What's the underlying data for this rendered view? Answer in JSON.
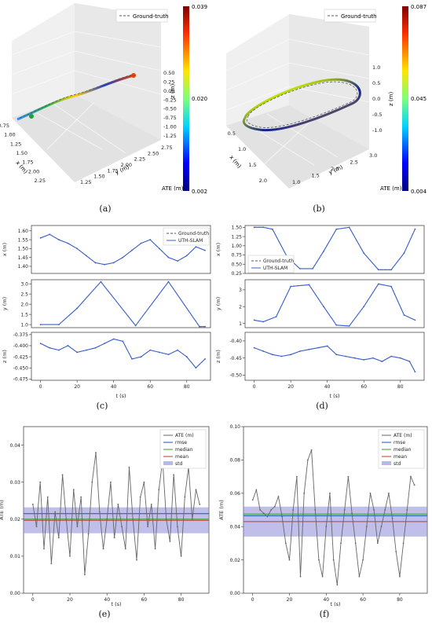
{
  "captions": [
    "(a)",
    "(b)",
    "(c)",
    "(d)",
    "(e)",
    "(f)"
  ],
  "chart_data": [
    {
      "type": "line3d",
      "panel": "a",
      "legend": {
        "entries": [
          "Ground-truth"
        ],
        "placement": "top-right"
      },
      "x": {
        "label": "x (m)",
        "ticks": [
          "0.75",
          "1.00",
          "1.25",
          "1.50",
          "1.75",
          "2.00",
          "2.25"
        ]
      },
      "y": {
        "label": "y (m)",
        "ticks": [
          "1.25",
          "1.50",
          "1.75",
          "2.00",
          "2.25",
          "2.50",
          "2.75"
        ]
      },
      "z": {
        "label": "z (m)",
        "ticks": [
          "0.50",
          "0.25",
          "0.00",
          "-0.25",
          "-0.50",
          "-0.75",
          "-1.00",
          "-1.25"
        ]
      },
      "colorbar": {
        "label": "ATE (m)",
        "min": 0.002,
        "mid": 0.02,
        "max": 0.039,
        "ticks": [
          "0.039",
          "0.020",
          "0.002"
        ]
      },
      "path": {
        "x": [
          1.0,
          1.25,
          1.5,
          1.75,
          2.0,
          2.25
        ],
        "y": [
          1.25,
          1.6,
          2.0,
          2.35,
          2.6,
          2.8
        ],
        "z": [
          0.0,
          0.0,
          0.0,
          0.0,
          0.0,
          0.0
        ]
      }
    },
    {
      "type": "line3d",
      "panel": "b",
      "legend": {
        "entries": [
          "Ground-truth"
        ],
        "placement": "top-right"
      },
      "x": {
        "label": "x (m)",
        "ticks": [
          "0.5",
          "1.0",
          "1.5",
          "2.0"
        ]
      },
      "y": {
        "label": "y (m)",
        "ticks": [
          "1.0",
          "1.5",
          "2.0",
          "2.5",
          "3.0"
        ]
      },
      "z": {
        "label": "z (m)",
        "ticks": [
          "1.0",
          "0.5",
          "0.0",
          "-0.5",
          "-1.0"
        ]
      },
      "colorbar": {
        "label": "ATE (m)",
        "min": 0.004,
        "mid": 0.045,
        "max": 0.087,
        "ticks": [
          "0.087",
          "0.045",
          "0.004"
        ]
      }
    },
    {
      "type": "line",
      "panel": "c",
      "xlabel": "t (s)",
      "xticks": [
        "0",
        "20",
        "40",
        "60",
        "80"
      ],
      "xlim": [
        -5,
        93
      ],
      "legend": {
        "entries": [
          "Ground-truth",
          "UTH-SLAM"
        ],
        "placement": "top-right"
      },
      "subplots": [
        {
          "ylabel": "x (m)",
          "ylim": [
            1.36,
            1.63
          ],
          "yticks": [
            1.4,
            1.45,
            1.5,
            1.55,
            1.6
          ],
          "yticklabels": [
            "1.40",
            "1.45",
            "1.50",
            "1.55",
            "1.60"
          ],
          "t": [
            0,
            5,
            10,
            15,
            20,
            25,
            30,
            35,
            40,
            45,
            50,
            55,
            60,
            65,
            70,
            75,
            80,
            85,
            90
          ],
          "values": [
            1.56,
            1.58,
            1.55,
            1.53,
            1.5,
            1.46,
            1.42,
            1.41,
            1.42,
            1.45,
            1.49,
            1.53,
            1.55,
            1.5,
            1.45,
            1.43,
            1.46,
            1.51,
            1.49
          ]
        },
        {
          "ylabel": "y (m)",
          "ylim": [
            0.85,
            3.2
          ],
          "yticks": [
            1.0,
            1.5,
            2.0,
            2.5,
            3.0
          ],
          "yticklabels": [
            "1.0",
            "1.5",
            "2.0",
            "2.5",
            "3.0"
          ],
          "t": [
            0,
            10,
            20,
            33,
            52,
            70,
            87,
            90
          ],
          "values": [
            1.0,
            1.0,
            1.8,
            3.1,
            0.95,
            3.1,
            0.9,
            0.9
          ]
        },
        {
          "ylabel": "z (m)",
          "ylim": [
            -0.478,
            -0.37
          ],
          "yticks": [
            -0.375,
            -0.4,
            -0.425,
            -0.45,
            -0.475
          ],
          "yticklabels": [
            "-0.375",
            "-0.400",
            "-0.425",
            "-0.450",
            "-0.475"
          ],
          "t": [
            0,
            5,
            10,
            15,
            20,
            25,
            30,
            35,
            40,
            45,
            50,
            55,
            60,
            65,
            70,
            75,
            80,
            85,
            90
          ],
          "values": [
            -0.395,
            -0.405,
            -0.41,
            -0.4,
            -0.415,
            -0.41,
            -0.405,
            -0.395,
            -0.385,
            -0.39,
            -0.43,
            -0.425,
            -0.41,
            -0.415,
            -0.42,
            -0.41,
            -0.425,
            -0.45,
            -0.43
          ]
        }
      ]
    },
    {
      "type": "line",
      "panel": "d",
      "xlabel": "t (s)",
      "xticks": [
        "0",
        "20",
        "40",
        "60",
        "80"
      ],
      "xlim": [
        -5,
        93
      ],
      "legend": {
        "entries": [
          "Ground-truth",
          "UTH-SLAM"
        ],
        "placement": "lower-left (top subplot)"
      },
      "subplots": [
        {
          "ylabel": "x (m)",
          "ylim": [
            0.25,
            1.55
          ],
          "yticks": [
            0.25,
            0.5,
            0.75,
            1.0,
            1.25,
            1.5
          ],
          "yticklabels": [
            "0.25",
            "0.50",
            "0.75",
            "1.00",
            "1.25",
            "1.50"
          ],
          "t": [
            0,
            5,
            10,
            18,
            25,
            32,
            38,
            45,
            52,
            60,
            68,
            75,
            82,
            88
          ],
          "values": [
            1.5,
            1.5,
            1.45,
            0.7,
            0.38,
            0.38,
            0.85,
            1.45,
            1.5,
            0.8,
            0.35,
            0.35,
            0.8,
            1.45
          ]
        },
        {
          "ylabel": "y (m)",
          "ylim": [
            0.75,
            3.6
          ],
          "yticks": [
            1,
            2,
            3
          ],
          "yticklabels": [
            "1",
            "2",
            "3"
          ],
          "t": [
            0,
            5,
            12,
            20,
            30,
            38,
            45,
            52,
            60,
            68,
            75,
            82,
            88
          ],
          "values": [
            1.2,
            1.1,
            1.4,
            3.2,
            3.3,
            2.0,
            0.9,
            0.85,
            2.0,
            3.35,
            3.2,
            1.5,
            1.2
          ]
        },
        {
          "ylabel": "z (m)",
          "ylim": [
            -0.515,
            -0.375
          ],
          "yticks": [
            -0.4,
            -0.45,
            -0.5
          ],
          "yticklabels": [
            "-0.40",
            "-0.45",
            "-0.50"
          ],
          "t": [
            0,
            5,
            10,
            15,
            20,
            25,
            30,
            35,
            40,
            45,
            50,
            55,
            60,
            65,
            70,
            75,
            80,
            85,
            88
          ],
          "values": [
            -0.42,
            -0.43,
            -0.44,
            -0.445,
            -0.44,
            -0.43,
            -0.425,
            -0.42,
            -0.415,
            -0.44,
            -0.445,
            -0.45,
            -0.455,
            -0.45,
            -0.46,
            -0.445,
            -0.45,
            -0.46,
            -0.49
          ]
        }
      ]
    },
    {
      "type": "line",
      "panel": "e",
      "xlabel": "t (s)",
      "ylabel": "ATE (m)",
      "xticks": [
        "0",
        "20",
        "40",
        "60",
        "80"
      ],
      "xlim": [
        -5,
        95
      ],
      "ylim": [
        0,
        0.045
      ],
      "yticks": [
        0.0,
        0.01,
        0.02,
        0.03,
        0.04
      ],
      "yticklabels": [
        "0.00",
        "0.01",
        "0.02",
        "0.03",
        "0.04"
      ],
      "legend": {
        "entries": [
          "ATE (m)",
          "rmse",
          "median",
          "mean",
          "std"
        ],
        "placement": "top-right"
      },
      "stats": {
        "rmse": 0.0215,
        "median": 0.02,
        "mean": 0.0197,
        "std_low": 0.0162,
        "std_high": 0.0232
      },
      "t": [
        0,
        2,
        4,
        6,
        8,
        10,
        12,
        14,
        16,
        18,
        20,
        22,
        24,
        26,
        28,
        30,
        32,
        34,
        36,
        38,
        40,
        42,
        44,
        46,
        48,
        50,
        52,
        54,
        56,
        58,
        60,
        62,
        64,
        66,
        68,
        70,
        72,
        74,
        76,
        78,
        80,
        82,
        84,
        86,
        88,
        90
      ],
      "values": [
        0.024,
        0.018,
        0.03,
        0.012,
        0.026,
        0.008,
        0.022,
        0.015,
        0.032,
        0.02,
        0.01,
        0.028,
        0.018,
        0.026,
        0.005,
        0.016,
        0.03,
        0.038,
        0.022,
        0.012,
        0.02,
        0.03,
        0.015,
        0.024,
        0.018,
        0.012,
        0.034,
        0.02,
        0.009,
        0.026,
        0.03,
        0.018,
        0.024,
        0.012,
        0.028,
        0.036,
        0.02,
        0.014,
        0.032,
        0.018,
        0.01,
        0.026,
        0.034,
        0.02,
        0.028,
        0.024
      ]
    },
    {
      "type": "line",
      "panel": "f",
      "xlabel": "t (s)",
      "ylabel": "ATE (m)",
      "xticks": [
        "0",
        "20",
        "40",
        "60",
        "80"
      ],
      "xlim": [
        -5,
        95
      ],
      "ylim": [
        0,
        0.1
      ],
      "yticks": [
        0.0,
        0.02,
        0.04,
        0.06,
        0.08,
        0.1
      ],
      "yticklabels": [
        "0.00",
        "0.02",
        "0.04",
        "0.06",
        "0.08",
        "0.10"
      ],
      "legend": {
        "entries": [
          "ATE (m)",
          "rmse",
          "median",
          "mean",
          "std"
        ],
        "placement": "top-right"
      },
      "stats": {
        "rmse": 0.0465,
        "median": 0.0475,
        "mean": 0.043,
        "std_low": 0.034,
        "std_high": 0.052
      },
      "t": [
        0,
        2,
        4,
        6,
        8,
        10,
        12,
        14,
        16,
        18,
        20,
        22,
        24,
        26,
        28,
        30,
        32,
        34,
        36,
        38,
        40,
        42,
        44,
        46,
        48,
        50,
        52,
        54,
        56,
        58,
        60,
        62,
        64,
        66,
        68,
        70,
        72,
        74,
        76,
        78,
        80,
        82,
        84,
        86,
        88
      ],
      "values": [
        0.056,
        0.062,
        0.05,
        0.048,
        0.046,
        0.05,
        0.052,
        0.058,
        0.046,
        0.03,
        0.02,
        0.05,
        0.07,
        0.01,
        0.06,
        0.08,
        0.086,
        0.05,
        0.02,
        0.01,
        0.04,
        0.06,
        0.02,
        0.005,
        0.03,
        0.05,
        0.07,
        0.048,
        0.03,
        0.01,
        0.02,
        0.04,
        0.06,
        0.05,
        0.03,
        0.04,
        0.05,
        0.06,
        0.045,
        0.025,
        0.01,
        0.03,
        0.05,
        0.07,
        0.065
      ]
    }
  ]
}
